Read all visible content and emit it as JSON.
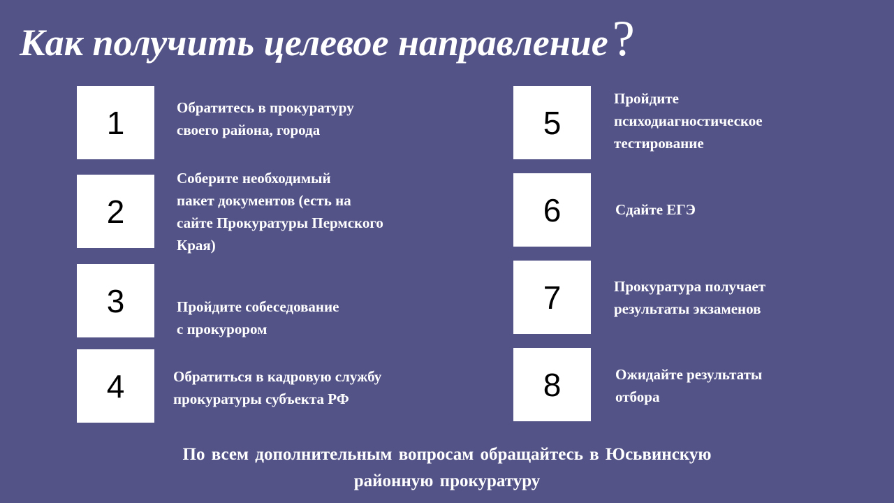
{
  "title": {
    "text": "Как получить целевое направление",
    "question_mark": "?"
  },
  "steps": [
    {
      "number": "1",
      "lines": [
        "Обратитесь в прокуратуру",
        "своего района, города"
      ]
    },
    {
      "number": "2",
      "lines": [
        "Соберите необходимый",
        "пакет документов (есть на",
        "сайте Прокуратуры Пермского",
        "Края)"
      ]
    },
    {
      "number": "3",
      "lines": [
        "Пройдите собеседование",
        "с прокурором"
      ]
    },
    {
      "number": "4",
      "lines": [
        "Обратиться в кадровую службу",
        "прокуратуры субъекта РФ"
      ]
    },
    {
      "number": "5",
      "lines": [
        "Пройдите",
        "психодиагностическое",
        "тестирование"
      ]
    },
    {
      "number": "6",
      "lines": [
        "Сдайте ЕГЭ"
      ]
    },
    {
      "number": "7",
      "lines": [
        "Прокуратура получает",
        "результаты  экзаменов"
      ]
    },
    {
      "number": "8",
      "lines": [
        "Ожидайте результаты",
        "отбора"
      ]
    }
  ],
  "footer": {
    "lines": [
      "По всем дополнительным вопросам обращайтесь в Юсьвинскую",
      "районную прокуратуру"
    ]
  },
  "colors": {
    "background": "#545388",
    "box": "#ffffff",
    "text": "#ffffff"
  }
}
